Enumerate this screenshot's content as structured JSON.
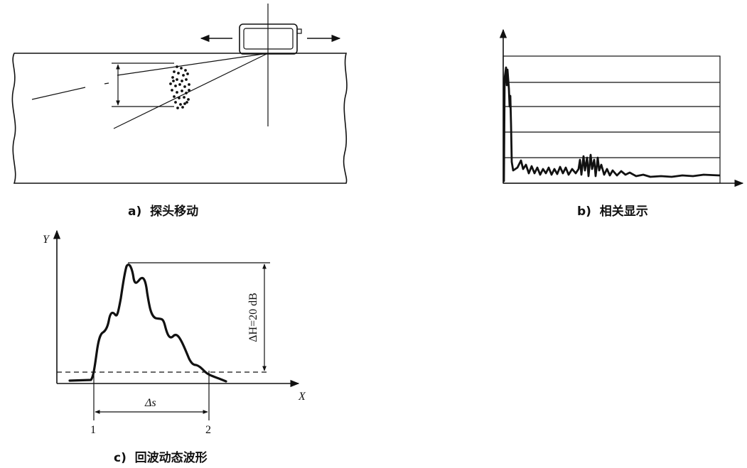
{
  "panels": {
    "a": {
      "caption": "a)  探头移动"
    },
    "b": {
      "caption": "b)  相关显示"
    },
    "c": {
      "caption": "c)  回波动态波形",
      "y_label": "Y",
      "x_label": "X",
      "delta_h_label": "ΔH=20 dB",
      "delta_s_label": "Δs",
      "point_1": "1",
      "point_2": "2"
    }
  }
}
